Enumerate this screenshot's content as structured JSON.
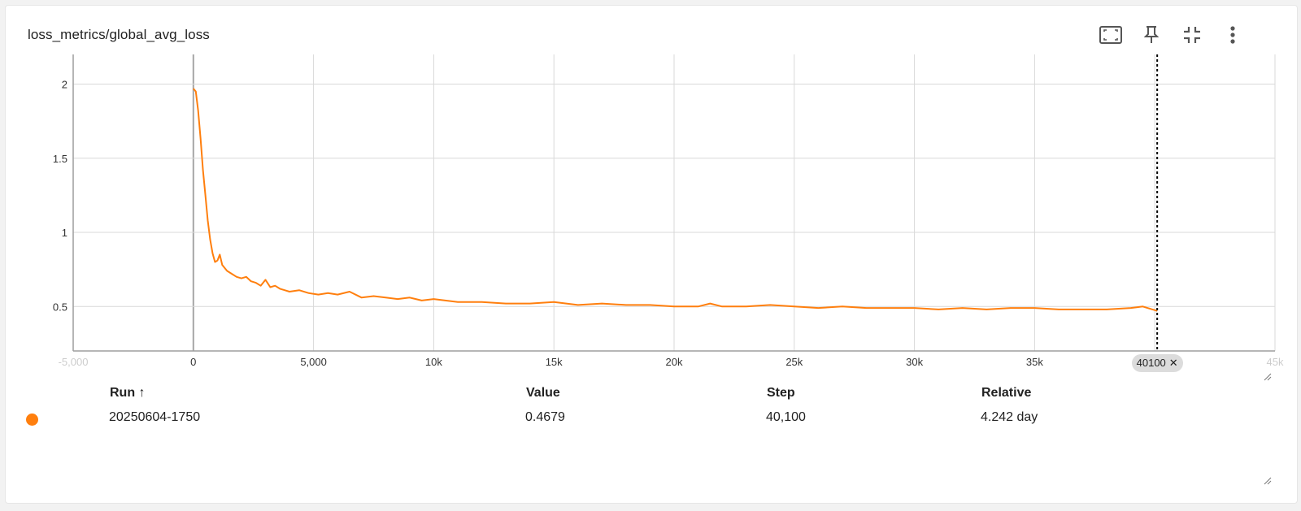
{
  "card": {
    "title": "loss_metrics/global_avg_loss"
  },
  "toolbar": {
    "icons": [
      "fit-domain-icon",
      "pin-icon",
      "collapse-icon",
      "more-vert-icon"
    ]
  },
  "colors": {
    "series": "#ff7f0e",
    "grid": "#d9d9d9",
    "axis": "#9e9e9e",
    "cursor": "#000000",
    "pill": "#dcdcdc"
  },
  "chart_data": {
    "type": "line",
    "title": "loss_metrics/global_avg_loss",
    "xlabel": "",
    "ylabel": "",
    "xlim": [
      -5000,
      45000
    ],
    "ylim": [
      0.2,
      2.2
    ],
    "x_ticks": [
      -5000,
      0,
      5000,
      10000,
      15000,
      20000,
      25000,
      30000,
      35000,
      40000,
      45000
    ],
    "x_tick_labels": [
      "-5,000",
      "0",
      "5,000",
      "10k",
      "15k",
      "20k",
      "25k",
      "30k",
      "35k",
      "40k",
      "45k"
    ],
    "y_ticks": [
      0.5,
      1,
      1.5,
      2
    ],
    "y_tick_labels": [
      "0.5",
      "1",
      "1.5",
      "2"
    ],
    "grid": true,
    "hover_step": 40100,
    "hover_label": "40100",
    "series": [
      {
        "name": "20250604-1750",
        "color": "#ff7f0e",
        "x": [
          0,
          100,
          200,
          300,
          400,
          500,
          600,
          700,
          800,
          900,
          1000,
          1100,
          1200,
          1400,
          1600,
          1800,
          2000,
          2200,
          2400,
          2600,
          2800,
          3000,
          3200,
          3400,
          3600,
          3800,
          4000,
          4400,
          4800,
          5200,
          5600,
          6000,
          6500,
          7000,
          7500,
          8000,
          8500,
          9000,
          9500,
          10000,
          11000,
          12000,
          13000,
          14000,
          15000,
          16000,
          17000,
          18000,
          19000,
          20000,
          21000,
          21500,
          22000,
          23000,
          24000,
          25000,
          26000,
          27000,
          28000,
          29000,
          30000,
          31000,
          32000,
          33000,
          34000,
          35000,
          36000,
          37000,
          38000,
          39000,
          39500,
          40100
        ],
        "y": [
          1.97,
          1.95,
          1.82,
          1.63,
          1.42,
          1.25,
          1.08,
          0.95,
          0.86,
          0.8,
          0.81,
          0.85,
          0.78,
          0.74,
          0.72,
          0.7,
          0.69,
          0.7,
          0.67,
          0.66,
          0.64,
          0.68,
          0.63,
          0.64,
          0.62,
          0.61,
          0.6,
          0.61,
          0.59,
          0.58,
          0.59,
          0.58,
          0.6,
          0.56,
          0.57,
          0.56,
          0.55,
          0.56,
          0.54,
          0.55,
          0.53,
          0.53,
          0.52,
          0.52,
          0.53,
          0.51,
          0.52,
          0.51,
          0.51,
          0.5,
          0.5,
          0.52,
          0.5,
          0.5,
          0.51,
          0.5,
          0.49,
          0.5,
          0.49,
          0.49,
          0.49,
          0.48,
          0.49,
          0.48,
          0.49,
          0.49,
          0.48,
          0.48,
          0.48,
          0.49,
          0.5,
          0.47
        ]
      }
    ]
  },
  "table": {
    "headers": {
      "run": "Run ↑",
      "value": "Value",
      "step": "Step",
      "relative": "Relative"
    },
    "rows": [
      {
        "run": "20250604-1750",
        "value": "0.4679",
        "step": "40,100",
        "relative": "4.242 day",
        "color": "#ff7f0e"
      }
    ]
  }
}
